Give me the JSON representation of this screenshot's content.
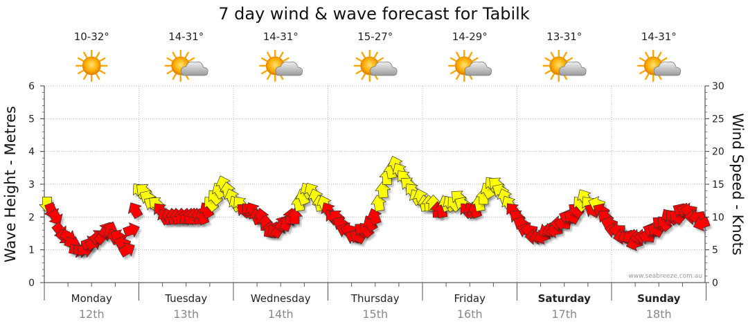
{
  "chart_data": {
    "type": "scatter",
    "title": "7 day wind & wave forecast for Tabilk",
    "ylabel_left": "Wave Height - Metres",
    "ylabel_right": "Wind Speed - Knots",
    "ylim_left": [
      0,
      6
    ],
    "ylim_right": [
      0,
      30
    ],
    "yticks_left": [
      "0",
      "1",
      "2",
      "3",
      "4",
      "5",
      "6"
    ],
    "yticks_right": [
      "0",
      "5",
      "10",
      "15",
      "20",
      "25",
      "30"
    ],
    "grid": true,
    "credit": "www.seabreeze.com.au",
    "days": [
      {
        "day": "Monday",
        "date": "12th",
        "temp": "10-32°",
        "icon": "sun-icon",
        "bold": false
      },
      {
        "day": "Tuesday",
        "date": "13th",
        "temp": "14-31°",
        "icon": "partly-cloudy-icon",
        "bold": false
      },
      {
        "day": "Wednesday",
        "date": "14th",
        "temp": "14-31°",
        "icon": "partly-cloudy-icon",
        "bold": false
      },
      {
        "day": "Thursday",
        "date": "15th",
        "temp": "15-27°",
        "icon": "partly-cloudy-icon",
        "bold": false
      },
      {
        "day": "Friday",
        "date": "16th",
        "temp": "14-29°",
        "icon": "partly-cloudy-icon",
        "bold": false
      },
      {
        "day": "Saturday",
        "date": "17th",
        "temp": "13-31°",
        "icon": "partly-cloudy-icon",
        "bold": true
      },
      {
        "day": "Sunday",
        "date": "18th",
        "temp": "14-31°",
        "icon": "partly-cloudy-icon",
        "bold": true
      }
    ],
    "colors": {
      "low": "#ff0000",
      "high": "#ffff00",
      "outline": "#333333",
      "grid": "#999999"
    },
    "wind_speed_knots": [
      12,
      11,
      10,
      8,
      7,
      7,
      6,
      5,
      5,
      5,
      6,
      6,
      7,
      7,
      8,
      8,
      7,
      7,
      6,
      5,
      8,
      11,
      14,
      14,
      13,
      12,
      12,
      11,
      10,
      10,
      10,
      10,
      10,
      10,
      10,
      10,
      10,
      10,
      11,
      12,
      13,
      14,
      15,
      14,
      13,
      12,
      12,
      11,
      11,
      11,
      10,
      10,
      9,
      8,
      8,
      8,
      9,
      9,
      10,
      10,
      12,
      13,
      14,
      14,
      13,
      12,
      12,
      11,
      10,
      10,
      9,
      8,
      8,
      7,
      7,
      8,
      8,
      9,
      10,
      12,
      14,
      16,
      17,
      18,
      17,
      16,
      15,
      14,
      13,
      13,
      12,
      12,
      12,
      11,
      11,
      12,
      12,
      12,
      13,
      12,
      11,
      11,
      11,
      12,
      13,
      14,
      15,
      15,
      14,
      13,
      12,
      11,
      10,
      9,
      8,
      8,
      7,
      7,
      7,
      8,
      8,
      8,
      9,
      9,
      10,
      10,
      11,
      12,
      13,
      12,
      11,
      12,
      11,
      10,
      9,
      8,
      8,
      7,
      7,
      7,
      6,
      7,
      7,
      7,
      8,
      8,
      9,
      9,
      10,
      10,
      10,
      11,
      11,
      11,
      10,
      10,
      9
    ],
    "wind_direction_deg": [
      180,
      160,
      150,
      140,
      130,
      120,
      110,
      100,
      90,
      80,
      70,
      60,
      50,
      40,
      30,
      20,
      330,
      300,
      290,
      60,
      70,
      330,
      320,
      310,
      300,
      300,
      310,
      320,
      330,
      340,
      350,
      350,
      0,
      10,
      10,
      0,
      350,
      340,
      330,
      320,
      320,
      330,
      340,
      350,
      340,
      330,
      320,
      310,
      320,
      330,
      340,
      350,
      0,
      10,
      20,
      30,
      30,
      20,
      10,
      0,
      350,
      340,
      330,
      330,
      340,
      350,
      340,
      330,
      320,
      310,
      300,
      290,
      280,
      290,
      300,
      310,
      320,
      330,
      340,
      350,
      355,
      0,
      350,
      340,
      330,
      320,
      310,
      320,
      330,
      340,
      350,
      355,
      0,
      0,
      350,
      340,
      330,
      320,
      310,
      300,
      320,
      330,
      340,
      350,
      0,
      330,
      320,
      310,
      300,
      340,
      330,
      320,
      310,
      300,
      290,
      280,
      270,
      260,
      250,
      240,
      250,
      260,
      270,
      280,
      290,
      300,
      310,
      320,
      330,
      320,
      300,
      290,
      300,
      310,
      290,
      280,
      270,
      260,
      250,
      240,
      250,
      260,
      270,
      280,
      290,
      300,
      310,
      320,
      330,
      320,
      310,
      300,
      290,
      280,
      270,
      260,
      250
    ]
  }
}
